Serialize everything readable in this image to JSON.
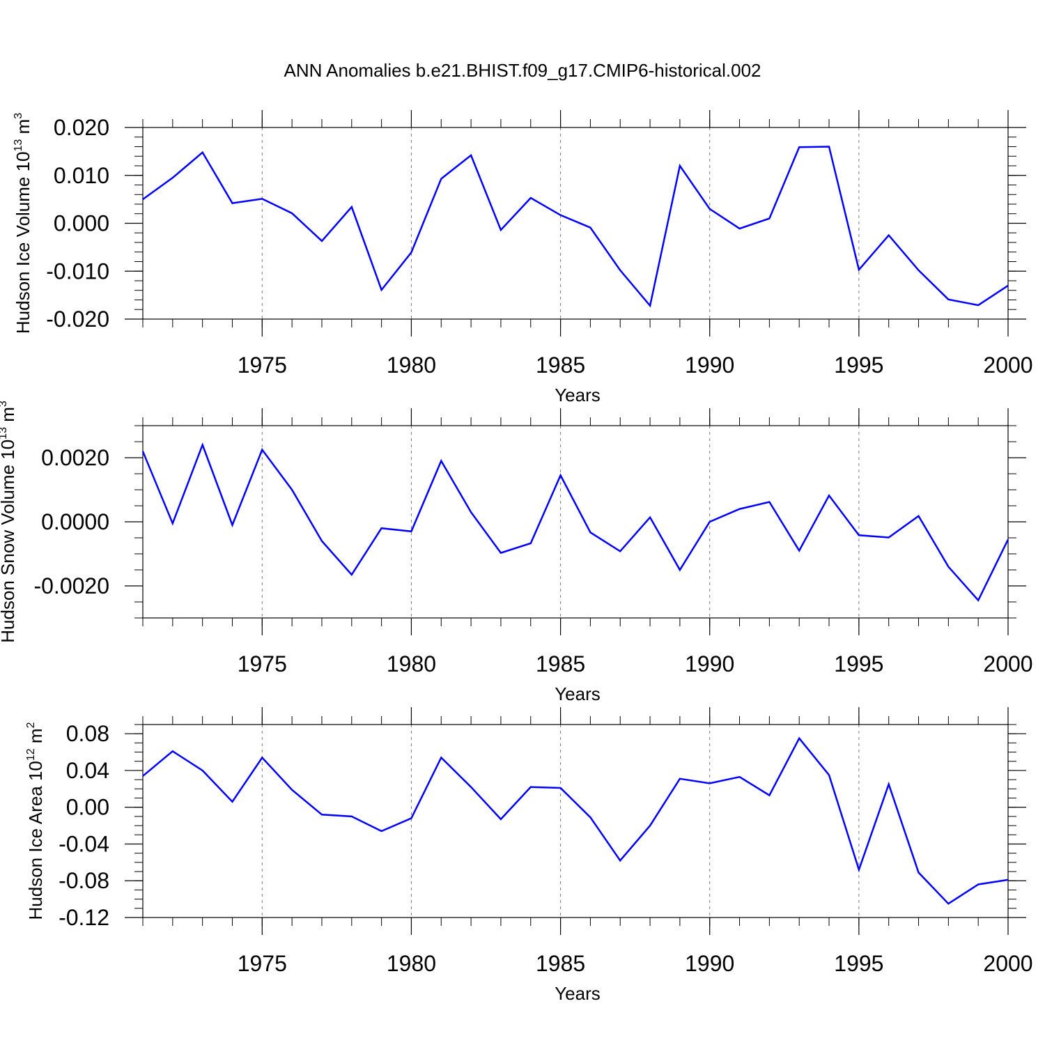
{
  "title": "ANN Anomalies b.e21.BHIST.f09_g17.CMIP6-historical.002",
  "colors": {
    "line": "#0000ff",
    "axis": "#000000",
    "grid": "#777777"
  },
  "chart_data": [
    {
      "type": "line",
      "ylabel_main": "Hudson Ice Volume 10",
      "ylabel_exp": "13",
      "ylabel_unit": "m",
      "ylabel_unit_exp": "3",
      "xlabel": "Years",
      "xlim": [
        1971,
        2000
      ],
      "ylim": [
        -0.02,
        0.02
      ],
      "x_ticks": [
        1975,
        1980,
        1985,
        1990,
        1995,
        2000
      ],
      "y_ticks": [
        -0.02,
        -0.01,
        0.0,
        0.01,
        0.02
      ],
      "y_tick_labels": [
        "-0.020",
        "-0.010",
        "0.000",
        "0.010",
        "0.020"
      ],
      "y_minor_step": 0.002,
      "grid": "vertical dashed at major x ticks",
      "x": [
        1971,
        1972,
        1973,
        1974,
        1975,
        1976,
        1977,
        1978,
        1979,
        1980,
        1981,
        1982,
        1983,
        1984,
        1985,
        1986,
        1987,
        1988,
        1989,
        1990,
        1991,
        1992,
        1993,
        1994,
        1995,
        1996,
        1997,
        1998,
        1999,
        2000
      ],
      "values": [
        0.005,
        0.0095,
        0.0148,
        0.0042,
        0.0051,
        0.0021,
        -0.0037,
        0.0034,
        -0.0139,
        -0.0061,
        0.0093,
        0.0142,
        -0.0014,
        0.0053,
        0.0017,
        -0.0009,
        -0.0098,
        -0.0172,
        0.012,
        0.003,
        -0.0011,
        0.001,
        0.0159,
        0.016,
        -0.0097,
        -0.0025,
        -0.0098,
        -0.0159,
        -0.0171,
        -0.013
      ]
    },
    {
      "type": "line",
      "ylabel_main": "Hudson Snow Volume 10",
      "ylabel_exp": "13",
      "ylabel_unit": "m",
      "ylabel_unit_exp": "3",
      "xlabel": "Years",
      "xlim": [
        1971,
        2000
      ],
      "ylim": [
        -0.003,
        0.003
      ],
      "x_ticks": [
        1975,
        1980,
        1985,
        1990,
        1995,
        2000
      ],
      "y_ticks": [
        -0.002,
        0.0,
        0.002
      ],
      "y_tick_labels": [
        "-0.0020",
        "0.0000",
        "0.0020"
      ],
      "y_minor_step": 0.0005,
      "grid": "vertical dashed at major x ticks",
      "x": [
        1971,
        1972,
        1973,
        1974,
        1975,
        1976,
        1977,
        1978,
        1979,
        1980,
        1981,
        1982,
        1983,
        1984,
        1985,
        1986,
        1987,
        1988,
        1989,
        1990,
        1991,
        1992,
        1993,
        1994,
        1995,
        1996,
        1997,
        1998,
        1999,
        2000
      ],
      "values": [
        0.0022,
        -5e-05,
        0.0024,
        -0.0001,
        0.00225,
        0.001,
        -0.0006,
        -0.00165,
        -0.0002,
        -0.0003,
        0.0019,
        0.0003,
        -0.00097,
        -0.00067,
        0.00145,
        -0.00033,
        -0.00092,
        0.00014,
        -0.0015,
        0.0,
        0.0004,
        0.00062,
        -0.0009,
        0.00082,
        -0.00042,
        -0.00049,
        0.00018,
        -0.0014,
        -0.00245,
        -0.00055
      ]
    },
    {
      "type": "line",
      "ylabel_main": "Hudson Ice Area 10",
      "ylabel_exp": "12",
      "ylabel_unit": "m",
      "ylabel_unit_exp": "2",
      "xlabel": "Years",
      "xlim": [
        1971,
        2000
      ],
      "ylim": [
        -0.12,
        0.09
      ],
      "x_ticks": [
        1975,
        1980,
        1985,
        1990,
        1995,
        2000
      ],
      "y_ticks": [
        -0.12,
        -0.08,
        -0.04,
        0.0,
        0.04,
        0.08
      ],
      "y_tick_labels": [
        "-0.12",
        "-0.08",
        "-0.04",
        "0.00",
        "0.04",
        "0.08"
      ],
      "y_minor_step": 0.01,
      "grid": "vertical dashed at major x ticks",
      "x": [
        1971,
        1972,
        1973,
        1974,
        1975,
        1976,
        1977,
        1978,
        1979,
        1980,
        1981,
        1982,
        1983,
        1984,
        1985,
        1986,
        1987,
        1988,
        1989,
        1990,
        1991,
        1992,
        1993,
        1994,
        1995,
        1996,
        1997,
        1998,
        1999,
        2000
      ],
      "values": [
        0.034,
        0.061,
        0.04,
        0.006,
        0.054,
        0.019,
        -0.008,
        -0.01,
        -0.026,
        -0.012,
        0.054,
        0.022,
        -0.013,
        0.022,
        0.021,
        -0.011,
        -0.058,
        -0.02,
        0.031,
        0.026,
        0.033,
        0.013,
        0.075,
        0.035,
        -0.068,
        0.025,
        -0.071,
        -0.105,
        -0.084,
        -0.079
      ]
    }
  ]
}
